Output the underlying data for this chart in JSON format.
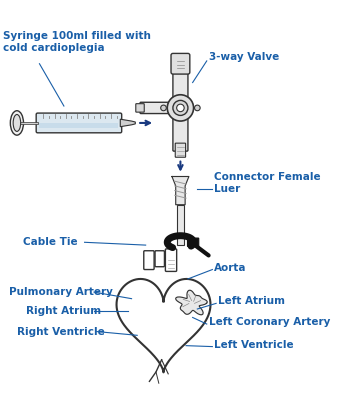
{
  "bg_color": "#ffffff",
  "label_color": "#1a5fa8",
  "outline_color": "#333333",
  "arrow_color": "#1a3a80",
  "labels": {
    "syringe": "Syringe 100ml filled with\ncold cardioplegia",
    "valve": "3-way Valve",
    "connector": "Connector Female\nLuer",
    "cable_tie": "Cable Tie",
    "aorta": "Aorta",
    "pulmonary": "Pulmonary Artery",
    "right_atrium": "Right Atrium",
    "right_ventricle": "Right Ventricle",
    "left_atrium": "Left Atrium",
    "left_coronary": "Left Coronary Artery",
    "left_ventricle": "Left Ventricle"
  },
  "figsize": [
    3.51,
    4.0
  ],
  "dpi": 100
}
